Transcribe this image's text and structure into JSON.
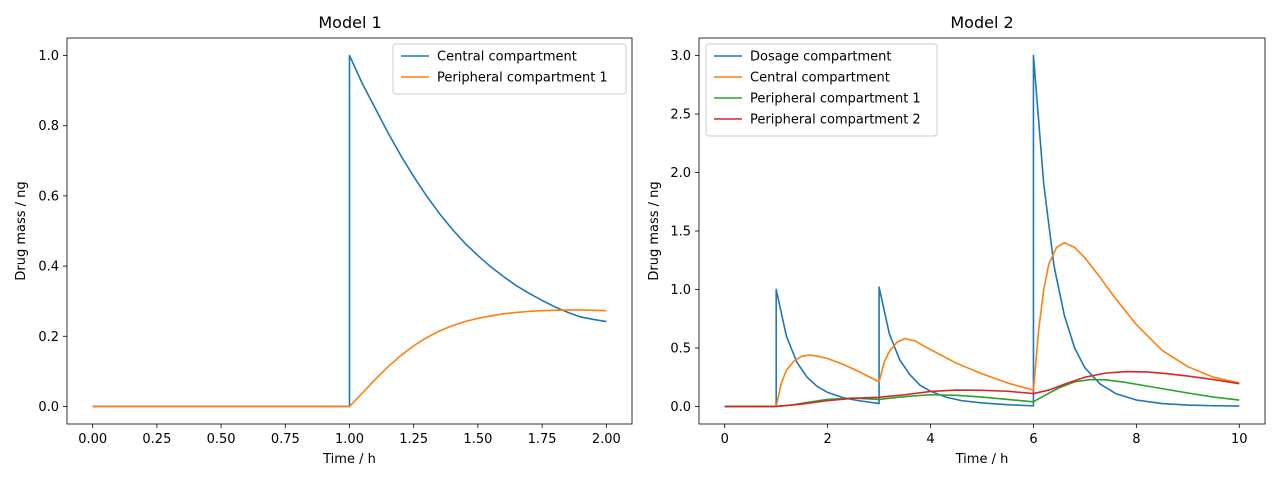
{
  "colors": {
    "blue": "#1f77b4",
    "orange": "#ff7f0e",
    "green": "#2ca02c",
    "red": "#d62728"
  },
  "chart_data": [
    {
      "type": "line",
      "title": "Model 1",
      "xlabel": "Time / h",
      "ylabel": "Drug mass / ng",
      "xlim": [
        -0.1,
        2.1
      ],
      "ylim": [
        -0.05,
        1.05
      ],
      "xticks": [
        0.0,
        0.25,
        0.5,
        0.75,
        1.0,
        1.25,
        1.5,
        1.75,
        2.0
      ],
      "xtick_labels": [
        "0.00",
        "0.25",
        "0.50",
        "0.75",
        "1.00",
        "1.25",
        "1.50",
        "1.75",
        "2.00"
      ],
      "yticks": [
        0.0,
        0.2,
        0.4,
        0.6,
        0.8,
        1.0
      ],
      "ytick_labels": [
        "0.0",
        "0.2",
        "0.4",
        "0.6",
        "0.8",
        "1.0"
      ],
      "legend_position": "top-right",
      "series": [
        {
          "name": "Central compartment",
          "color": "#1f77b4",
          "x": [
            0,
            1.0,
            1.0,
            1.05,
            1.1,
            1.15,
            1.2,
            1.25,
            1.3,
            1.35,
            1.4,
            1.45,
            1.5,
            1.55,
            1.6,
            1.65,
            1.7,
            1.75,
            1.8,
            1.85,
            1.9,
            1.95,
            2.0
          ],
          "y": [
            0,
            0,
            1.0,
            0.92,
            0.85,
            0.78,
            0.715,
            0.655,
            0.6,
            0.55,
            0.505,
            0.465,
            0.43,
            0.398,
            0.37,
            0.344,
            0.322,
            0.302,
            0.284,
            0.268,
            0.255,
            0.248,
            0.242
          ]
        },
        {
          "name": "Peripheral compartment 1",
          "color": "#ff7f0e",
          "x": [
            0,
            1.0,
            1.05,
            1.1,
            1.15,
            1.2,
            1.25,
            1.3,
            1.35,
            1.4,
            1.45,
            1.5,
            1.55,
            1.6,
            1.65,
            1.7,
            1.75,
            1.8,
            1.85,
            1.9,
            1.95,
            2.0
          ],
          "y": [
            0,
            0,
            0.038,
            0.077,
            0.113,
            0.145,
            0.173,
            0.196,
            0.215,
            0.23,
            0.242,
            0.251,
            0.258,
            0.264,
            0.268,
            0.271,
            0.273,
            0.274,
            0.275,
            0.275,
            0.274,
            0.273
          ]
        }
      ]
    },
    {
      "type": "line",
      "title": "Model 2",
      "xlabel": "Time / h",
      "ylabel": "Drug mass / ng",
      "xlim": [
        -0.5,
        10.5
      ],
      "ylim": [
        -0.15,
        3.15
      ],
      "xticks": [
        0,
        2,
        4,
        6,
        8,
        10
      ],
      "xtick_labels": [
        "0",
        "2",
        "4",
        "6",
        "8",
        "10"
      ],
      "yticks": [
        0.0,
        0.5,
        1.0,
        1.5,
        2.0,
        2.5,
        3.0
      ],
      "ytick_labels": [
        "0.0",
        "0.5",
        "1.0",
        "1.5",
        "2.0",
        "2.5",
        "3.0"
      ],
      "legend_position": "top-left",
      "series": [
        {
          "name": "Dosage compartment",
          "color": "#1f77b4",
          "x": [
            0,
            1.0,
            1.0,
            1.2,
            1.4,
            1.6,
            1.8,
            2.0,
            2.3,
            2.6,
            3.0,
            3.0,
            3.2,
            3.4,
            3.6,
            3.8,
            4.0,
            4.3,
            4.6,
            5.0,
            5.5,
            6.0,
            6.0,
            6.2,
            6.4,
            6.6,
            6.8,
            7.0,
            7.3,
            7.6,
            8.0,
            8.5,
            9.0,
            9.5,
            10.0
          ],
          "y": [
            0,
            0,
            1.0,
            0.6,
            0.38,
            0.25,
            0.17,
            0.12,
            0.075,
            0.05,
            0.025,
            1.02,
            0.62,
            0.4,
            0.27,
            0.18,
            0.13,
            0.08,
            0.05,
            0.03,
            0.015,
            0.005,
            3.0,
            1.9,
            1.2,
            0.78,
            0.5,
            0.33,
            0.19,
            0.11,
            0.055,
            0.025,
            0.012,
            0.006,
            0.003
          ]
        },
        {
          "name": "Central compartment",
          "color": "#ff7f0e",
          "x": [
            0,
            1.0,
            1.1,
            1.2,
            1.35,
            1.5,
            1.65,
            1.8,
            2.0,
            2.3,
            2.6,
            3.0,
            3.1,
            3.2,
            3.35,
            3.5,
            3.7,
            3.9,
            4.2,
            4.5,
            5.0,
            5.5,
            6.0,
            6.1,
            6.2,
            6.3,
            6.45,
            6.6,
            6.8,
            7.0,
            7.3,
            7.6,
            8.0,
            8.5,
            9.0,
            9.5,
            10.0
          ],
          "y": [
            0,
            0,
            0.2,
            0.31,
            0.39,
            0.43,
            0.44,
            0.43,
            0.41,
            0.36,
            0.3,
            0.21,
            0.38,
            0.47,
            0.55,
            0.58,
            0.56,
            0.51,
            0.44,
            0.37,
            0.28,
            0.2,
            0.14,
            0.65,
            1.0,
            1.22,
            1.36,
            1.4,
            1.36,
            1.27,
            1.1,
            0.92,
            0.7,
            0.48,
            0.34,
            0.25,
            0.2
          ]
        },
        {
          "name": "Peripheral compartment 1",
          "color": "#2ca02c",
          "x": [
            0,
            1.0,
            1.3,
            1.6,
            2.0,
            2.5,
            3.0,
            3.3,
            3.6,
            4.0,
            4.5,
            5.0,
            5.5,
            6.0,
            6.2,
            6.5,
            6.8,
            7.1,
            7.4,
            7.8,
            8.2,
            8.6,
            9.0,
            9.5,
            10.0
          ],
          "y": [
            0,
            0,
            0.012,
            0.035,
            0.06,
            0.072,
            0.06,
            0.075,
            0.088,
            0.1,
            0.095,
            0.08,
            0.06,
            0.04,
            0.09,
            0.16,
            0.21,
            0.23,
            0.228,
            0.205,
            0.175,
            0.145,
            0.115,
            0.08,
            0.055
          ]
        },
        {
          "name": "Peripheral compartment 2",
          "color": "#d62728",
          "x": [
            0,
            1.0,
            1.5,
            2.0,
            2.5,
            3.0,
            3.5,
            4.0,
            4.5,
            5.0,
            5.5,
            6.0,
            6.3,
            6.6,
            7.0,
            7.4,
            7.8,
            8.2,
            8.6,
            9.0,
            9.5,
            10.0
          ],
          "y": [
            0,
            0,
            0.02,
            0.05,
            0.07,
            0.078,
            0.1,
            0.128,
            0.14,
            0.138,
            0.13,
            0.11,
            0.14,
            0.19,
            0.25,
            0.285,
            0.298,
            0.295,
            0.28,
            0.26,
            0.23,
            0.195
          ]
        }
      ]
    }
  ]
}
